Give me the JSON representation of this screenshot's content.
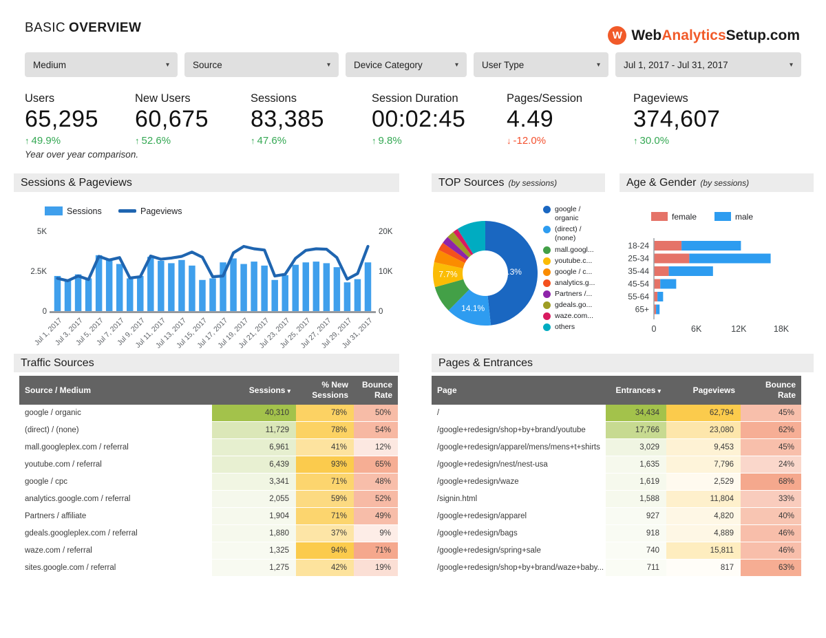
{
  "page": {
    "title_light": "BASIC",
    "title_bold": "OVERVIEW",
    "footnote": "Year over year comparison."
  },
  "logo": {
    "icon_letter": "W",
    "prefix": "Web",
    "accent": "Analytics",
    "suffix": "Setup.com"
  },
  "filters": [
    {
      "label": "Medium"
    },
    {
      "label": "Source"
    },
    {
      "label": "Device Category"
    },
    {
      "label": "User Type"
    },
    {
      "label": "Jul 1, 2017 - Jul 31, 2017"
    }
  ],
  "kpis": [
    {
      "label": "Users",
      "value": "65,295",
      "delta": "49.9%",
      "direction": "up"
    },
    {
      "label": "New Users",
      "value": "60,675",
      "delta": "52.6%",
      "direction": "up"
    },
    {
      "label": "Sessions",
      "value": "83,385",
      "delta": "47.6%",
      "direction": "up"
    },
    {
      "label": "Session Duration",
      "value": "00:02:45",
      "delta": "9.8%",
      "direction": "up"
    },
    {
      "label": "Pages/Session",
      "value": "4.49",
      "delta": "-12.0%",
      "direction": "down"
    },
    {
      "label": "Pageviews",
      "value": "374,607",
      "delta": "30.0%",
      "direction": "up"
    }
  ],
  "chart_data": [
    {
      "id": "sessions_pageviews",
      "type": "bar+line",
      "title": "Sessions & Pageviews",
      "x": [
        "Jul 1, 2017",
        "Jul 2, 2017",
        "Jul 3, 2017",
        "Jul 4, 2017",
        "Jul 5, 2017",
        "Jul 6, 2017",
        "Jul 7, 2017",
        "Jul 8, 2017",
        "Jul 9, 2017",
        "Jul 10, 2017",
        "Jul 11, 2017",
        "Jul 12, 2017",
        "Jul 13, 2017",
        "Jul 14, 2017",
        "Jul 15, 2017",
        "Jul 16, 2017",
        "Jul 17, 2017",
        "Jul 18, 2017",
        "Jul 19, 2017",
        "Jul 20, 2017",
        "Jul 21, 2017",
        "Jul 22, 2017",
        "Jul 23, 2017",
        "Jul 24, 2017",
        "Jul 25, 2017",
        "Jul 26, 2017",
        "Jul 27, 2017",
        "Jul 28, 2017",
        "Jul 29, 2017",
        "Jul 30, 2017",
        "Jul 31, 2017"
      ],
      "x_label_step": 2,
      "series": [
        {
          "name": "Sessions",
          "type": "bar",
          "axis": "left",
          "color": "#3f9fec",
          "values": [
            2200,
            1950,
            2300,
            2050,
            3500,
            3300,
            2950,
            2050,
            2200,
            3400,
            3150,
            3000,
            3200,
            2850,
            1950,
            2050,
            3050,
            3300,
            2950,
            3100,
            2850,
            1950,
            2250,
            2900,
            3050,
            3100,
            3000,
            2750,
            1800,
            2000,
            3050
          ]
        },
        {
          "name": "Pageviews",
          "type": "line",
          "axis": "right",
          "color": "#1f65b0",
          "values": [
            8200,
            7600,
            8800,
            7900,
            13700,
            12800,
            13400,
            8300,
            8600,
            13800,
            13000,
            13300,
            13700,
            14800,
            13500,
            8600,
            8800,
            14600,
            16200,
            15600,
            15300,
            8800,
            9200,
            13200,
            15200,
            15600,
            15500,
            13400,
            8000,
            9400,
            16200
          ]
        }
      ],
      "left_axis": {
        "ticks": [
          "0",
          "2.5K",
          "5K"
        ],
        "max": 5000
      },
      "right_axis": {
        "ticks": [
          "0",
          "10K",
          "20K"
        ],
        "max": 20000
      },
      "legend_position": "top"
    },
    {
      "id": "top_sources",
      "type": "pie",
      "donut": true,
      "title": "TOP Sources",
      "subtitle": "(by sessions)",
      "slices": [
        {
          "legend": "google /\norganic",
          "value": 48.3,
          "pct_label": "48.3%",
          "color": "#1a67c1"
        },
        {
          "legend": "(direct) /\n(none)",
          "value": 14.1,
          "pct_label": "14.1%",
          "color": "#2e9cf0"
        },
        {
          "legend": "mall.googl...",
          "value": 8.3,
          "color": "#43a047"
        },
        {
          "legend": "youtube.c...",
          "value": 7.7,
          "pct_label": "7.7%",
          "color": "#fbbc05"
        },
        {
          "legend": "google / c...",
          "value": 4.0,
          "color": "#fb8c00"
        },
        {
          "legend": "analytics.g...",
          "value": 2.5,
          "color": "#f4511e"
        },
        {
          "legend": "Partners /...",
          "value": 2.3,
          "color": "#8e24aa"
        },
        {
          "legend": "gdeals.go...",
          "value": 2.3,
          "color": "#9e9d24"
        },
        {
          "legend": "waze.com...",
          "value": 1.6,
          "color": "#d81b60"
        },
        {
          "legend": "others",
          "value": 8.9,
          "color": "#00acc1"
        }
      ],
      "legend_position": "right"
    },
    {
      "id": "age_gender",
      "type": "stacked-bar-horizontal",
      "title": "Age & Gender",
      "subtitle": "(by sessions)",
      "categories": [
        "18-24",
        "25-34",
        "35-44",
        "45-54",
        "55-64",
        "65+"
      ],
      "series": [
        {
          "name": "female",
          "color": "#e57368",
          "values": [
            3900,
            5000,
            2100,
            900,
            500,
            300
          ]
        },
        {
          "name": "male",
          "color": "#2d9cf0",
          "values": [
            8400,
            11500,
            6250,
            2250,
            800,
            500
          ]
        }
      ],
      "x_ticks": [
        "0",
        "6K",
        "12K",
        "18K"
      ],
      "x_max": 18000,
      "legend_position": "top"
    }
  ],
  "tables": {
    "traffic_sources": {
      "title": "Traffic Sources",
      "columns": [
        {
          "label": "Source / Medium",
          "align": "left"
        },
        {
          "label": "Sessions",
          "align": "right",
          "heat": "green",
          "sorted": true
        },
        {
          "label": "% New Sessions",
          "align": "right",
          "heat": "yellow"
        },
        {
          "label": "Bounce Rate",
          "align": "right",
          "heat": "red"
        }
      ],
      "rows": [
        [
          "google / organic",
          "40,310",
          "78%",
          "50%"
        ],
        [
          "(direct) / (none)",
          "11,729",
          "78%",
          "54%"
        ],
        [
          "mall.googleplex.com / referral",
          "6,961",
          "41%",
          "12%"
        ],
        [
          "youtube.com / referral",
          "6,439",
          "93%",
          "65%"
        ],
        [
          "google / cpc",
          "3,341",
          "71%",
          "48%"
        ],
        [
          "analytics.google.com / referral",
          "2,055",
          "59%",
          "52%"
        ],
        [
          "Partners / affiliate",
          "1,904",
          "71%",
          "49%"
        ],
        [
          "gdeals.googleplex.com / referral",
          "1,880",
          "37%",
          "9%"
        ],
        [
          "waze.com / referral",
          "1,325",
          "94%",
          "71%"
        ],
        [
          "sites.google.com / referral",
          "1,275",
          "42%",
          "19%"
        ]
      ]
    },
    "pages_entrances": {
      "title": "Pages & Entrances",
      "columns": [
        {
          "label": "Page",
          "align": "left"
        },
        {
          "label": "Entrances",
          "align": "right",
          "heat": "green",
          "sorted": true
        },
        {
          "label": "Pageviews",
          "align": "right",
          "heat": "yellow"
        },
        {
          "label": "Bounce Rate",
          "align": "right",
          "heat": "red"
        }
      ],
      "rows": [
        [
          "/",
          "34,434",
          "62,794",
          "45%"
        ],
        [
          "/google+redesign/shop+by+brand/youtube",
          "17,766",
          "23,080",
          "62%"
        ],
        [
          "/google+redesign/apparel/mens/mens+t+shirts",
          "3,029",
          "9,453",
          "45%"
        ],
        [
          "/google+redesign/nest/nest-usa",
          "1,635",
          "7,796",
          "24%"
        ],
        [
          "/google+redesign/waze",
          "1,619",
          "2,529",
          "68%"
        ],
        [
          "/signin.html",
          "1,588",
          "11,804",
          "33%"
        ],
        [
          "/google+redesign/apparel",
          "927",
          "4,820",
          "40%"
        ],
        [
          "/google+redesign/bags",
          "918",
          "4,889",
          "46%"
        ],
        [
          "/google+redesign/spring+sale",
          "740",
          "15,811",
          "46%"
        ],
        [
          "/google+redesign/shop+by+brand/waze+baby...",
          "711",
          "817",
          "63%"
        ]
      ]
    }
  },
  "colors": {
    "positive": "#34a853",
    "negative": "#f4502e",
    "accent_orange": "#f15a29",
    "bar_blue": "#3f9fec",
    "line_blue": "#1f65b0",
    "female": "#e57368",
    "male": "#2d9cf0",
    "heat_green": "#a3c24b",
    "heat_yellow": "#fbcb4c",
    "heat_red": "#f5a88d",
    "table_header_bg": "#636363",
    "section_bg": "#ececec",
    "filter_bg": "#e0e0e0"
  }
}
